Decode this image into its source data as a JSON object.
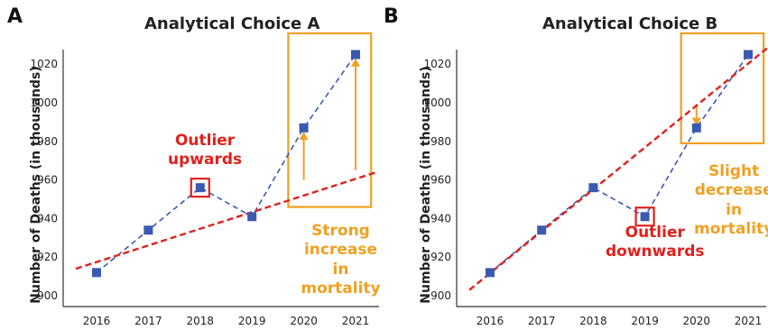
{
  "colors": {
    "series": "#3a5ab0",
    "trend": "#e0211d",
    "highlight": "#f0a023",
    "outlier_box": "#e0211d"
  },
  "chart_data": [
    {
      "type": "line",
      "panel_letter": "A",
      "title": "Analytical Choice A",
      "ylabel": "Number of Deaths (in thousands)",
      "x": [
        2016,
        2017,
        2018,
        2019,
        2020,
        2021
      ],
      "xticks": [
        "2016",
        "2017",
        "2018",
        "2019",
        "2020",
        "2021"
      ],
      "yticks": [
        "900",
        "920",
        "940",
        "960",
        "980",
        "1000",
        "1020"
      ],
      "ylim": [
        895,
        1030
      ],
      "series": [
        {
          "values": [
            912,
            934,
            956,
            941,
            987,
            1025
          ]
        }
      ],
      "trend_line": {
        "style": "dashed",
        "from": [
          2015.6,
          914
        ],
        "to": [
          2021.4,
          964
        ]
      },
      "outlier_marker": {
        "x": 2018,
        "y": 956
      },
      "highlight_box": {
        "x_range": [
          2019.7,
          2021.3
        ],
        "y_range": [
          946,
          1036
        ]
      },
      "arrows": [
        {
          "x": 2020,
          "from_y": 960,
          "to_y": 985
        },
        {
          "x": 2021,
          "from_y": 965,
          "to_y": 1023
        }
      ],
      "annotations": [
        {
          "text": "Outlier\nupwards",
          "color": "red"
        },
        {
          "text": "Strong\nincrease in\nmortality",
          "color": "orange"
        }
      ],
      "grid": false
    },
    {
      "type": "line",
      "panel_letter": "B",
      "title": "Analytical Choice B",
      "ylabel": "Number of Deaths (in thousands)",
      "x": [
        2016,
        2017,
        2018,
        2019,
        2020,
        2021
      ],
      "xticks": [
        "2016",
        "2017",
        "2018",
        "2019",
        "2020",
        "2021"
      ],
      "yticks": [
        "900",
        "920",
        "940",
        "960",
        "980",
        "1000",
        "1020"
      ],
      "ylim": [
        895,
        1030
      ],
      "series": [
        {
          "values": [
            912,
            934,
            956,
            941,
            987,
            1025
          ]
        }
      ],
      "trend_line": {
        "style": "dashed",
        "from": [
          2015.6,
          903
        ],
        "to": [
          2021.4,
          1029
        ]
      },
      "outlier_marker": {
        "x": 2019,
        "y": 941
      },
      "highlight_box": {
        "x_range": [
          2019.7,
          2021.3
        ],
        "y_range": [
          979,
          1036
        ]
      },
      "arrows": [
        {
          "x": 2020,
          "from_y": 998,
          "to_y": 988
        }
      ],
      "annotations": [
        {
          "text": "Outlier\ndownwards",
          "color": "red"
        },
        {
          "text": "Slight\ndecrease in\nmortality",
          "color": "orange"
        }
      ],
      "grid": false
    }
  ]
}
